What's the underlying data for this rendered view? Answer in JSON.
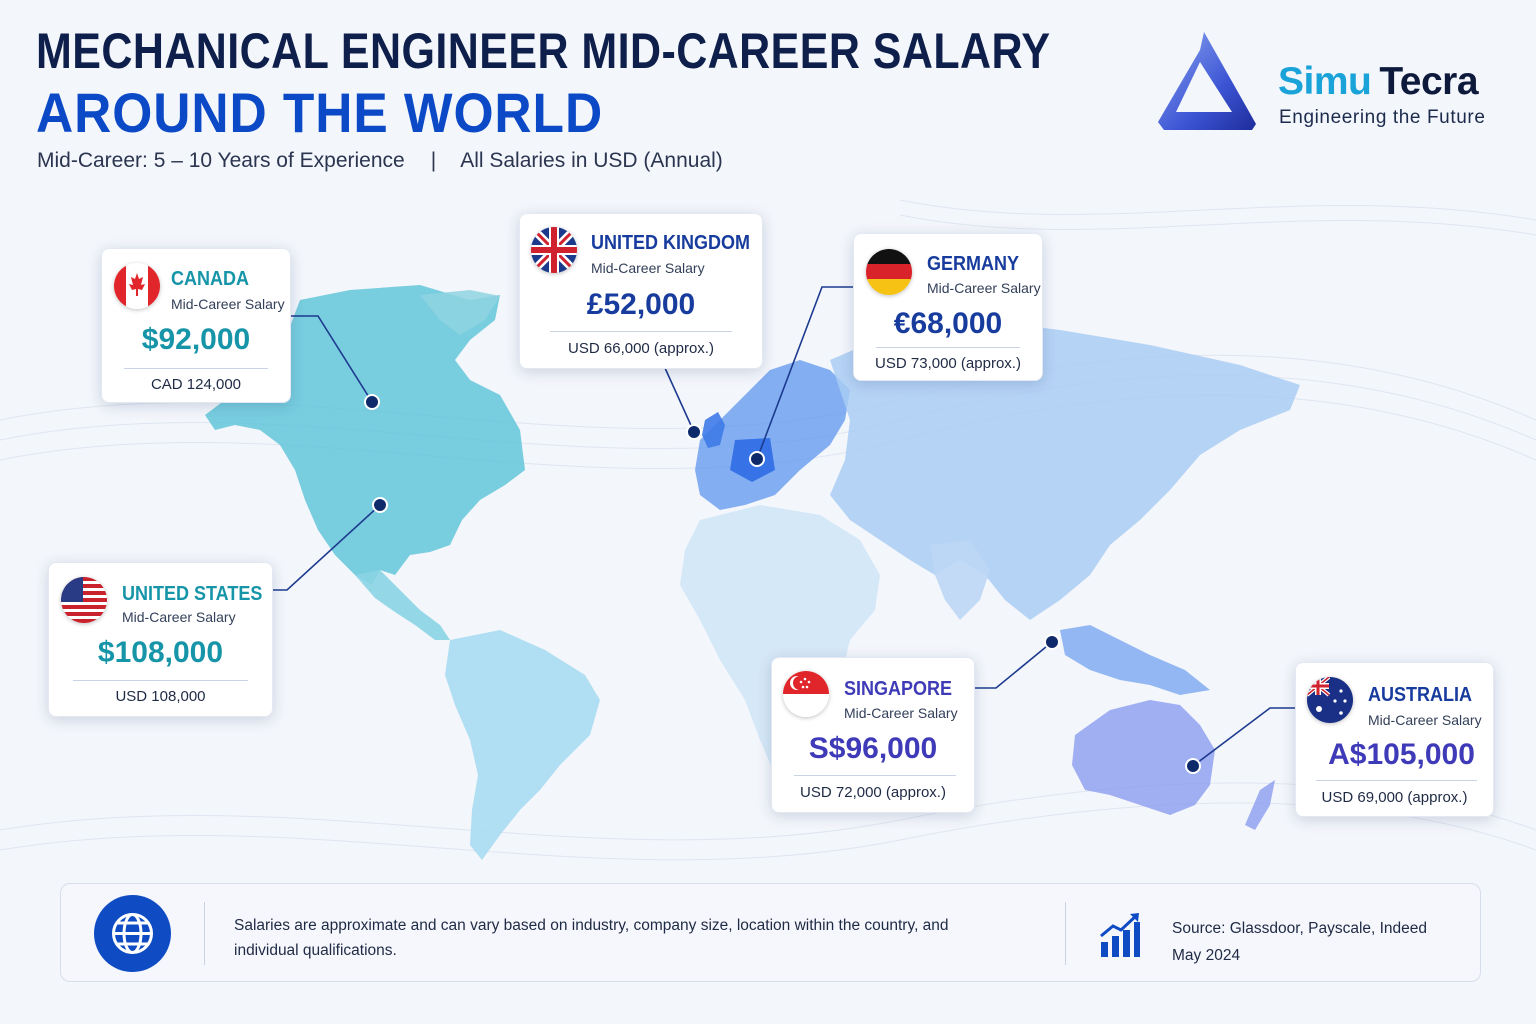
{
  "header": {
    "title_line1": "MECHANICAL ENGINEER MID-CAREER SALARY",
    "title_line2": "AROUND THE WORLD",
    "subtitle_left": "Mid-Career: 5 – 10 Years of Experience",
    "subtitle_sep": "|",
    "subtitle_right": "All Salaries in USD (Annual)"
  },
  "brand": {
    "name_part1": "Simu",
    "name_part2": "Tecra",
    "tagline": "Engineering the Future"
  },
  "countries": [
    {
      "name": "CANADA",
      "label": "Mid-Career Salary",
      "amount": "$92,000",
      "converted": "CAD 124,000",
      "flag_icon": "canada-flag-icon"
    },
    {
      "name": "UNITED KINGDOM",
      "label": "Mid-Career Salary",
      "amount": "£52,000",
      "converted": "USD 66,000 (approx.)",
      "flag_icon": "uk-flag-icon"
    },
    {
      "name": "GERMANY",
      "label": "Mid-Career Salary",
      "amount": "€68,000",
      "converted": "USD 73,000 (approx.)",
      "flag_icon": "germany-flag-icon"
    },
    {
      "name": "UNITED STATES",
      "label": "Mid-Career Salary",
      "amount": "$108,000",
      "converted": "USD 108,000",
      "flag_icon": "usa-flag-icon"
    },
    {
      "name": "SINGAPORE",
      "label": "Mid-Career Salary",
      "amount": "S$96,000",
      "converted": "USD 72,000 (approx.)",
      "flag_icon": "singapore-flag-icon"
    },
    {
      "name": "AUSTRALIA",
      "label": "Mid-Career Salary",
      "amount": "A$105,000",
      "converted": "USD 69,000 (approx.)",
      "flag_icon": "australia-flag-icon"
    }
  ],
  "footer": {
    "disclaimer": "Salaries are approximate and can vary based on industry, company size, location within the country, and individual qualifications.",
    "source_line1": "Source: Glassdoor, Payscale, Indeed",
    "source_line2": "May 2024",
    "icons": [
      "globe-icon",
      "growth-chart-icon"
    ]
  },
  "colors": {
    "title_dark": "#0d1f4a",
    "title_blue": "#0c49c7",
    "teal": "#1695a8",
    "navy": "#173c9e",
    "purple": "#3f3bb8"
  }
}
